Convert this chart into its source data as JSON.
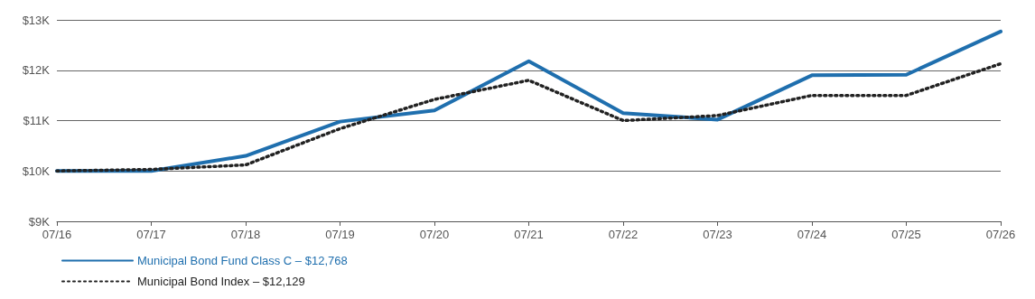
{
  "chart_data": {
    "type": "line",
    "categories": [
      "07/16",
      "07/17",
      "07/18",
      "07/19",
      "07/20",
      "07/21",
      "07/22",
      "07/23",
      "07/24",
      "07/25",
      "07/26"
    ],
    "series": [
      {
        "name": "Municipal Bond Fund Class C – $12,768",
        "color": "#1f6fae",
        "line_style": "solid",
        "values": [
          10000,
          10000,
          10300,
          10980,
          11200,
          12180,
          11150,
          11020,
          11900,
          11910,
          12768
        ]
      },
      {
        "name": "Municipal Bond Index – $12,129",
        "color": "#222222",
        "line_style": "dotted",
        "values": [
          10000,
          10030,
          10120,
          10840,
          11420,
          11800,
          11000,
          11100,
          11500,
          11500,
          12129
        ]
      }
    ],
    "ylim": [
      9000,
      13000
    ],
    "yticks": [
      {
        "value": 9000,
        "label": "$9K"
      },
      {
        "value": 10000,
        "label": "$10K"
      },
      {
        "value": 11000,
        "label": "$11K"
      },
      {
        "value": 12000,
        "label": "$12K"
      },
      {
        "value": 13000,
        "label": "$13K"
      }
    ],
    "grid": "y",
    "legend": "bottom left",
    "marker": "none"
  }
}
